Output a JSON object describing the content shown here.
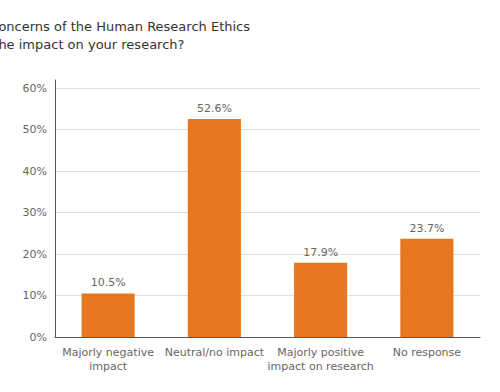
{
  "chart_data": {
    "type": "bar",
    "title": "In general, after addressing the concerns of the Human Research Ethics\nCommittee, what was the impact on your research?",
    "categories": [
      "Majorly negative\nimpact",
      "Neutral/no impact",
      "Majorly positive\nimpact on research",
      "No response"
    ],
    "values": [
      10.5,
      52.6,
      17.9,
      23.7
    ],
    "value_labels": [
      "10.5%",
      "52.6%",
      "17.9%",
      "23.7%"
    ],
    "data_labels": true,
    "color": "#E87722",
    "ylim": [
      0,
      62
    ],
    "yticks": [
      {
        "value": 0,
        "label": "0%"
      },
      {
        "value": 10,
        "label": "10%"
      },
      {
        "value": 20,
        "label": "20%"
      },
      {
        "value": 30,
        "label": "30%"
      },
      {
        "value": 40,
        "label": "40%"
      },
      {
        "value": 50,
        "label": "50%"
      },
      {
        "value": 60,
        "label": "60%"
      }
    ],
    "grid": true
  }
}
